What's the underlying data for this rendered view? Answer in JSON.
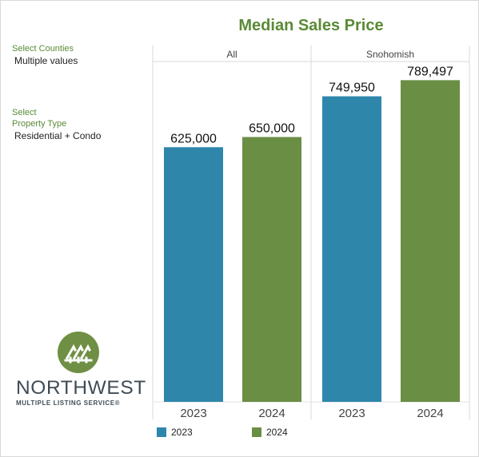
{
  "filters": {
    "counties": {
      "label": "Select Counties",
      "value": "Multiple values"
    },
    "property_type": {
      "label_line1": "Select",
      "label_line2": "Property Type",
      "value": "Residential + Condo"
    }
  },
  "logo": {
    "name": "NORTHWEST",
    "subtitle": "MULTIPLE LISTING SERVICE",
    "mark": "®"
  },
  "colors": {
    "2023": "#2e86ab",
    "2024": "#6b8e45",
    "title": "#5b8a35"
  },
  "chart_data": {
    "type": "bar",
    "title": "Median Sales Price",
    "panes": [
      {
        "name": "All",
        "categories": [
          "2023",
          "2024"
        ],
        "values": [
          625000,
          650000
        ],
        "labels": [
          "625,000",
          "650,000"
        ]
      },
      {
        "name": "Snohomish",
        "categories": [
          "2023",
          "2024"
        ],
        "values": [
          749950,
          789497
        ],
        "labels": [
          "749,950",
          "789,497"
        ]
      }
    ],
    "ylim": [
      0,
      800000
    ],
    "legend": [
      {
        "name": "2023",
        "color": "#2e86ab"
      },
      {
        "name": "2024",
        "color": "#6b8e45"
      }
    ],
    "legend_position": "bottom-left",
    "grid": false
  }
}
